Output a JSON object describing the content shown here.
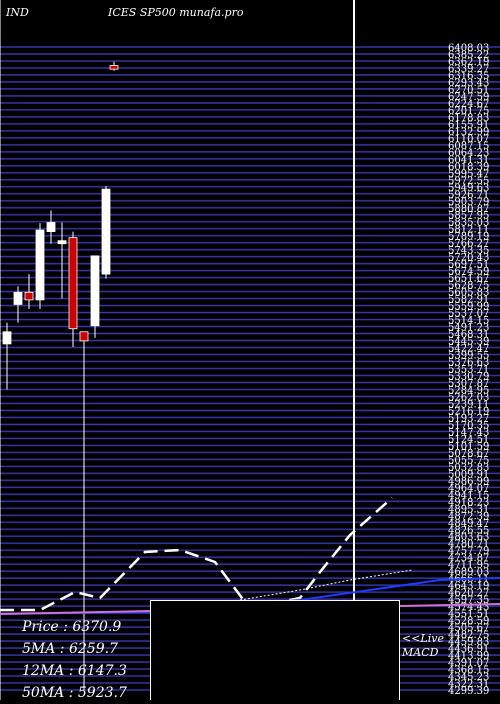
{
  "header": {
    "left": "IND",
    "right": "ICES SP500  munafa.pro"
  },
  "chart_data": {
    "type": "candlestick",
    "title": "ICES SP500",
    "ylim": [
      4290.0,
      6408.03
    ],
    "y_tick_labels": [
      "6408.03",
      "6385.22",
      "6362.19",
      "6339.27",
      "6316.35",
      "6293.43",
      "6270.51",
      "6247.59",
      "6224.67",
      "6201.75",
      "6178.83",
      "6155.91",
      "6132.99",
      "6110.07",
      "6087.15",
      "6064.23",
      "6041.31",
      "6018.39",
      "5995.47",
      "5972.55",
      "5949.63",
      "5926.71",
      "5903.79",
      "5880.87",
      "5857.95",
      "5835.03",
      "5812.11",
      "5789.19",
      "5766.27",
      "5743.35",
      "5720.43",
      "5697.51",
      "5674.59",
      "5651.67",
      "5628.75",
      "5605.83",
      "5582.91",
      "5559.99",
      "5537.07",
      "5514.15",
      "5491.23",
      "5468.31",
      "5445.39",
      "5422.47",
      "5399.55",
      "5376.63",
      "5353.71",
      "5330.79",
      "5307.87",
      "5284.95",
      "5262.03",
      "5239.11",
      "5216.19",
      "5193.27",
      "5170.35",
      "5147.43",
      "5124.51",
      "5101.59",
      "5078.67",
      "5055.75",
      "5032.83",
      "5009.91",
      "4986.99",
      "4964.07",
      "4941.15",
      "4918.23",
      "4895.31",
      "4872.39",
      "4849.47",
      "4826.55",
      "4803.63",
      "4780.71",
      "4757.79",
      "4734.87",
      "4711.95",
      "4689.03",
      "4666.11",
      "4643.19",
      "4620.27",
      "4597.35",
      "4574.43",
      "4551.51",
      "4528.59",
      "4505.67",
      "4482.75",
      "4459.83",
      "4436.91",
      "4413.99",
      "4391.07",
      "4368.15",
      "4345.23",
      "4322.31",
      "4299.39"
    ],
    "candles": [
      {
        "open": 5470,
        "high": 5500,
        "low": 5280,
        "close": 5430,
        "color": "white"
      },
      {
        "open": 5560,
        "high": 5620,
        "low": 5500,
        "close": 5600,
        "color": "white"
      },
      {
        "open": 5600,
        "high": 5660,
        "low": 5545,
        "close": 5575,
        "color": "red"
      },
      {
        "open": 5575,
        "high": 5828,
        "low": 5545,
        "close": 5805,
        "color": "white"
      },
      {
        "open": 5800,
        "high": 5870,
        "low": 5760,
        "close": 5830,
        "color": "white"
      },
      {
        "open": 5760,
        "high": 5830,
        "low": 5580,
        "close": 5770,
        "color": "white"
      },
      {
        "open": 5780,
        "high": 5800,
        "low": 5420,
        "close": 5480,
        "color": "red"
      },
      {
        "open": 5440,
        "high": 5460,
        "low": 4290,
        "close": 5470,
        "color": "red"
      },
      {
        "open": 5490,
        "high": 5720,
        "low": 5450,
        "close": 5720,
        "color": "white"
      },
      {
        "open": 5660,
        "high": 5950,
        "low": 5645,
        "close": 5940,
        "color": "white"
      },
      {
        "open": 6347,
        "high": 6360,
        "low": 6330,
        "close": 6335,
        "color": "red"
      }
    ],
    "ma_series": [
      {
        "name": "5MA",
        "value": 6259.7
      },
      {
        "name": "12MA",
        "value": 6147.3
      },
      {
        "name": "50MA",
        "value": 5923.7
      }
    ],
    "price": 6370.9
  },
  "info": {
    "price": "Price  : 6370.9",
    "ma5": "5MA : 6259.7",
    "ma12": "12MA : 6147.3",
    "ma50": "50MA : 5923.7"
  },
  "live": {
    "line1": "<<Live",
    "line2": "MACD"
  }
}
